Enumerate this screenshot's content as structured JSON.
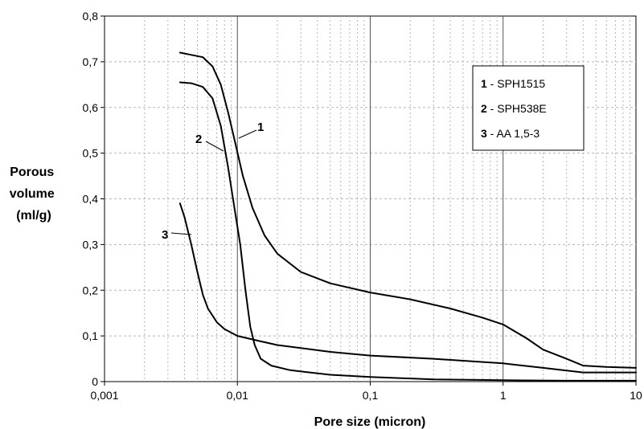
{
  "chart_data": {
    "type": "line",
    "x_scale": "log",
    "xlabel": "Pore size (micron)",
    "ylabel": [
      "Porous",
      "volume",
      "(ml/g)"
    ],
    "xlim": [
      0.001,
      10
    ],
    "ylim": [
      0,
      0.8
    ],
    "x_ticks": [
      "0,001",
      "0,01",
      "0,1",
      "1",
      "10"
    ],
    "y_ticks": [
      "0",
      "0,1",
      "0,2",
      "0,3",
      "0,4",
      "0,5",
      "0,6",
      "0,7",
      "0,8"
    ],
    "grid": true,
    "legend_position": "top-right",
    "series": [
      {
        "num": "1",
        "name": "SPH1515",
        "label": "1",
        "x": [
          0.0037,
          0.0045,
          0.0055,
          0.0065,
          0.0075,
          0.0085,
          0.0095,
          0.011,
          0.013,
          0.016,
          0.02,
          0.03,
          0.05,
          0.1,
          0.2,
          0.4,
          0.7,
          1.0,
          1.5,
          2.0,
          3.0,
          4.0,
          6.0,
          10.0
        ],
        "y": [
          0.72,
          0.715,
          0.71,
          0.69,
          0.65,
          0.59,
          0.53,
          0.45,
          0.38,
          0.32,
          0.28,
          0.24,
          0.215,
          0.195,
          0.18,
          0.16,
          0.14,
          0.125,
          0.095,
          0.07,
          0.05,
          0.035,
          0.032,
          0.03
        ]
      },
      {
        "num": "2",
        "name": "SPH538E",
        "label": "2",
        "x": [
          0.0037,
          0.0045,
          0.0055,
          0.0065,
          0.0075,
          0.0085,
          0.0095,
          0.0105,
          0.0115,
          0.0125,
          0.0135,
          0.015,
          0.018,
          0.025,
          0.05,
          0.1,
          0.3,
          1.0,
          3.0,
          10.0
        ],
        "y": [
          0.655,
          0.653,
          0.645,
          0.62,
          0.56,
          0.47,
          0.38,
          0.3,
          0.2,
          0.12,
          0.08,
          0.05,
          0.035,
          0.025,
          0.015,
          0.01,
          0.005,
          0.003,
          0.002,
          0.002
        ]
      },
      {
        "num": "3",
        "name": "AA 1,5-3",
        "label": "3",
        "x": [
          0.0037,
          0.004,
          0.0045,
          0.005,
          0.0055,
          0.006,
          0.007,
          0.008,
          0.01,
          0.015,
          0.02,
          0.05,
          0.1,
          0.3,
          1.0,
          2.0,
          4.0,
          10.0
        ],
        "y": [
          0.39,
          0.36,
          0.3,
          0.24,
          0.19,
          0.16,
          0.13,
          0.115,
          0.1,
          0.088,
          0.08,
          0.065,
          0.057,
          0.05,
          0.04,
          0.03,
          0.02,
          0.02
        ]
      }
    ]
  }
}
